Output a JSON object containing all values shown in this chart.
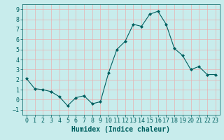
{
  "x": [
    0,
    1,
    2,
    3,
    4,
    5,
    6,
    7,
    8,
    9,
    10,
    11,
    12,
    13,
    14,
    15,
    16,
    17,
    18,
    19,
    20,
    21,
    22,
    23
  ],
  "y": [
    2.1,
    1.1,
    1.0,
    0.8,
    0.3,
    -0.6,
    0.2,
    0.4,
    -0.4,
    -0.2,
    2.7,
    5.0,
    5.8,
    7.5,
    7.3,
    8.5,
    8.8,
    7.5,
    5.1,
    4.4,
    3.0,
    3.3,
    2.5,
    2.5
  ],
  "line_color": "#006060",
  "marker": "D",
  "marker_size": 2,
  "bg_color": "#c8ecec",
  "grid_major_color": "#e8b0b0",
  "grid_minor_color": "#d8e8e8",
  "xlabel": "Humidex (Indice chaleur)",
  "xlim": [
    -0.5,
    23.5
  ],
  "ylim": [
    -1.5,
    9.5
  ],
  "yticks": [
    -1,
    0,
    1,
    2,
    3,
    4,
    5,
    6,
    7,
    8,
    9
  ],
  "xticks": [
    0,
    1,
    2,
    3,
    4,
    5,
    6,
    7,
    8,
    9,
    10,
    11,
    12,
    13,
    14,
    15,
    16,
    17,
    18,
    19,
    20,
    21,
    22,
    23
  ],
  "tick_color": "#006060",
  "label_color": "#006060",
  "font_size": 6,
  "xlabel_fontsize": 7
}
